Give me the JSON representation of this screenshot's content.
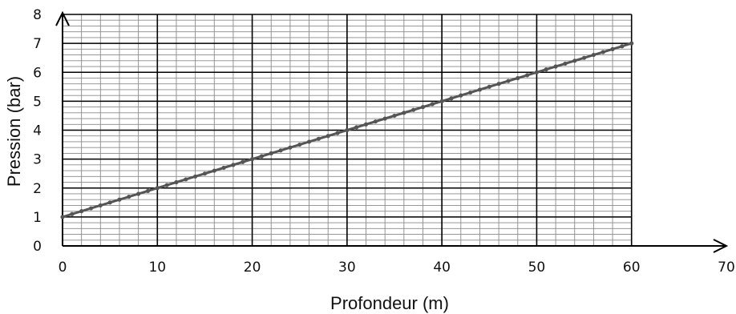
{
  "chart_data": {
    "type": "line",
    "title": "",
    "xlabel": "Profondeur (m)",
    "ylabel": "Pression (bar)",
    "xlim": [
      0,
      70
    ],
    "ylim": [
      0,
      8
    ],
    "x_ticks": [
      "0",
      "10",
      "20",
      "30",
      "40",
      "50",
      "60",
      "70"
    ],
    "y_ticks": [
      "0",
      "1",
      "2",
      "3",
      "4",
      "5",
      "6",
      "7",
      "8"
    ],
    "x_major_step": 10,
    "x_minor_step": 2,
    "y_major_step": 1,
    "y_minor_step": 0.2,
    "grid": true,
    "axis_arrows": true,
    "series": [
      {
        "color": "#555555",
        "marker": "circle",
        "x": [
          0,
          60
        ],
        "y": [
          1,
          7
        ],
        "point_step": 1
      }
    ]
  }
}
